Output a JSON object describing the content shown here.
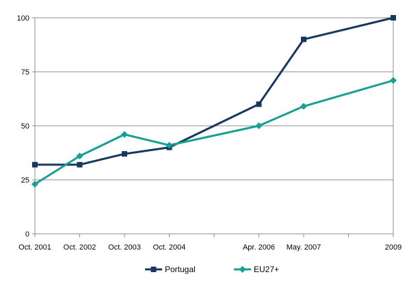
{
  "chart_data": {
    "type": "line",
    "title": "",
    "xlabel": "",
    "ylabel": "",
    "x": [
      "Oct. 2001",
      "Oct. 2002",
      "Oct. 2003",
      "Oct. 2004",
      "",
      "Apr. 2006",
      "May. 2007",
      "",
      "2009"
    ],
    "ylim": [
      0,
      100
    ],
    "yticks": [
      0,
      25,
      50,
      75,
      100
    ],
    "grid": "horizontal",
    "legend_position": "bottom",
    "series": [
      {
        "name": "Portugal",
        "color": "#17375e",
        "marker": "square",
        "values": [
          32,
          32,
          37,
          40,
          null,
          60,
          90,
          null,
          100
        ]
      },
      {
        "name": "EU27+",
        "color": "#16a093",
        "marker": "diamond",
        "values": [
          23,
          36,
          46,
          41,
          null,
          50,
          59,
          null,
          71
        ]
      }
    ]
  }
}
